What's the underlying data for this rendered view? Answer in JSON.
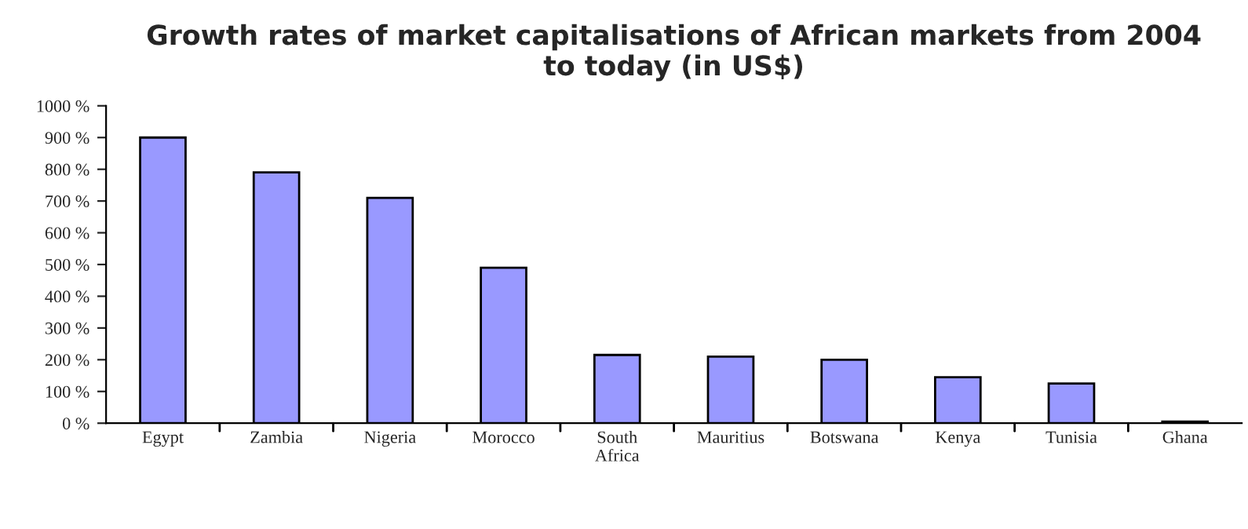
{
  "chart_data": {
    "type": "bar",
    "title": "Growth rates of market capitalisations of African markets from 2004\nto today (in US$)",
    "categories": [
      "Egypt",
      "Zambia",
      "Nigeria",
      "Morocco",
      "South\nAfrica",
      "Mauritius",
      "Botswana",
      "Kenya",
      "Tunisia",
      "Ghana"
    ],
    "values": [
      900,
      790,
      710,
      490,
      215,
      210,
      200,
      145,
      125,
      5
    ],
    "color": "#9999ff",
    "ylim": [
      0,
      1000
    ],
    "yticks": [
      {
        "value": 0,
        "label": "0 %"
      },
      {
        "value": 100,
        "label": "100 %"
      },
      {
        "value": 200,
        "label": "200 %"
      },
      {
        "value": 300,
        "label": "300 %"
      },
      {
        "value": 400,
        "label": "400 %"
      },
      {
        "value": 500,
        "label": "500 %"
      },
      {
        "value": 600,
        "label": "600 %"
      },
      {
        "value": 700,
        "label": "700 %"
      },
      {
        "value": 800,
        "label": "800 %"
      },
      {
        "value": 900,
        "label": "900 %"
      },
      {
        "value": 1000,
        "label": "1000 %"
      }
    ],
    "grid": false
  }
}
